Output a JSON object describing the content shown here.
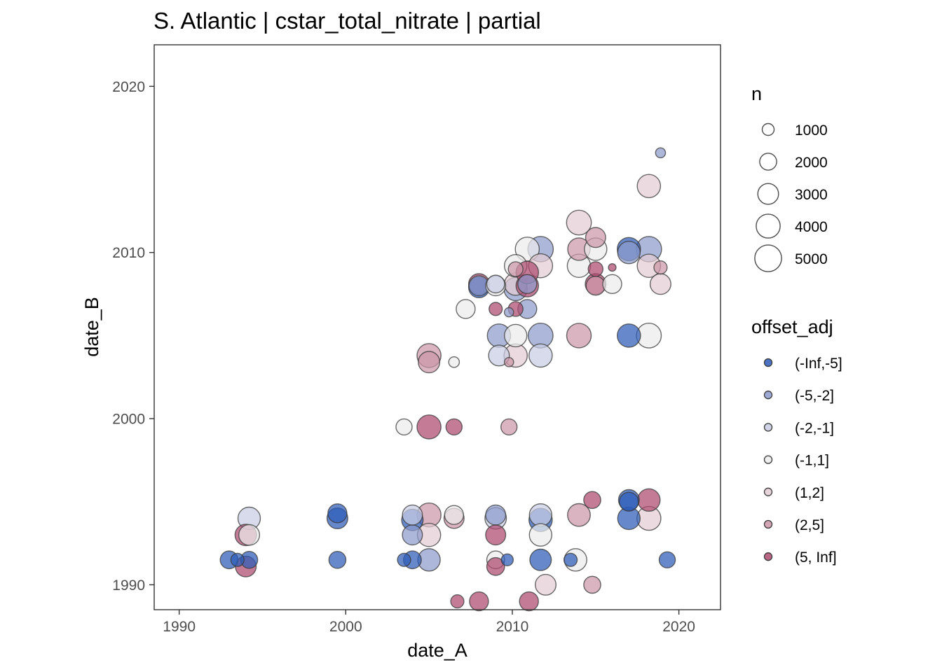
{
  "chart_data": {
    "type": "scatter",
    "title": "S. Atlantic | cstar_total_nitrate | partial",
    "xlabel": "date_A",
    "ylabel": "date_B",
    "xlim": [
      1988.5,
      2022.5
    ],
    "ylim": [
      1988.5,
      2022.5
    ],
    "x_ticks": [
      1990,
      2000,
      2010,
      2020
    ],
    "y_ticks": [
      1990,
      2000,
      2010,
      2020
    ],
    "x_tick_labels": [
      "1990",
      "2000",
      "2010",
      "2020"
    ],
    "y_tick_labels": [
      "1990",
      "2000",
      "2010",
      "2020"
    ],
    "grid": false,
    "legend_position": "right",
    "size_legend": {
      "title": "n",
      "entries": [
        {
          "label": "1000",
          "value": 1000
        },
        {
          "label": "2000",
          "value": 2000
        },
        {
          "label": "3000",
          "value": 3000
        },
        {
          "label": "4000",
          "value": 4000
        },
        {
          "label": "5000",
          "value": 5000
        }
      ]
    },
    "color_legend": {
      "title": "offset_adj",
      "entries": [
        {
          "label": "(-Inf,-5]",
          "color": "#2c5bb7"
        },
        {
          "label": "(-5,-2]",
          "color": "#8e9bcc"
        },
        {
          "label": "(-2,-1]",
          "color": "#c9cde3"
        },
        {
          "label": "(-1,1]",
          "color": "#ececec"
        },
        {
          "label": "(1,2]",
          "color": "#e3ccd3"
        },
        {
          "label": "(2,5]",
          "color": "#cc97a8"
        },
        {
          "label": "(5, Inf]",
          "color": "#ad4a6e"
        }
      ]
    },
    "points": [
      {
        "x": 1993.0,
        "y": 1991.5,
        "n": 2200,
        "group": "(-Inf,-5]"
      },
      {
        "x": 1993.5,
        "y": 1991.5,
        "n": 1200,
        "group": "(-Inf,-5]"
      },
      {
        "x": 1994.2,
        "y": 1991.5,
        "n": 2000,
        "group": "(-Inf,-5]"
      },
      {
        "x": 1994.0,
        "y": 1991.1,
        "n": 3000,
        "group": "(5, Inf]"
      },
      {
        "x": 1994.2,
        "y": 1993.0,
        "n": 3000,
        "group": "(-1,1]"
      },
      {
        "x": 1994.0,
        "y": 1993.0,
        "n": 3200,
        "group": "(5, Inf]"
      },
      {
        "x": 1994.2,
        "y": 1994.0,
        "n": 3500,
        "group": "(-2,-1]"
      },
      {
        "x": 1999.5,
        "y": 1994.3,
        "n": 2500,
        "group": "(-Inf,-5]"
      },
      {
        "x": 1999.5,
        "y": 1994.0,
        "n": 3000,
        "group": "(-Inf,-5]"
      },
      {
        "x": 1999.5,
        "y": 1991.5,
        "n": 2000,
        "group": "(-Inf,-5]"
      },
      {
        "x": 2003.5,
        "y": 1991.5,
        "n": 1200,
        "group": "(-Inf,-5]"
      },
      {
        "x": 2004.0,
        "y": 1991.5,
        "n": 2200,
        "group": "(-Inf,-5]"
      },
      {
        "x": 2005.0,
        "y": 1991.5,
        "n": 3500,
        "group": "(-5,-2]"
      },
      {
        "x": 2004.0,
        "y": 1993.0,
        "n": 2800,
        "group": "(-5,-2]"
      },
      {
        "x": 2004.0,
        "y": 1994.2,
        "n": 2800,
        "group": "(-2,-1]"
      },
      {
        "x": 2004.0,
        "y": 1993.9,
        "n": 3200,
        "group": "(-Inf,-5]"
      },
      {
        "x": 2005.0,
        "y": 1993.0,
        "n": 3800,
        "group": "(1,2]"
      },
      {
        "x": 2005.0,
        "y": 1994.2,
        "n": 4000,
        "group": "(2,5]"
      },
      {
        "x": 2006.5,
        "y": 1994.2,
        "n": 2500,
        "group": "(-1,1]"
      },
      {
        "x": 2006.5,
        "y": 1994.0,
        "n": 2800,
        "group": "(2,5]"
      },
      {
        "x": 2006.7,
        "y": 1989.0,
        "n": 1200,
        "group": "(5, Inf]"
      },
      {
        "x": 2008.0,
        "y": 1989.0,
        "n": 2500,
        "group": "(5, Inf]"
      },
      {
        "x": 2009.0,
        "y": 1994.2,
        "n": 2800,
        "group": "(-5,-2]"
      },
      {
        "x": 2009.0,
        "y": 1994.0,
        "n": 3200,
        "group": "(-2,-1]"
      },
      {
        "x": 2009.0,
        "y": 1993.0,
        "n": 2800,
        "group": "(5, Inf]"
      },
      {
        "x": 2009.0,
        "y": 1991.5,
        "n": 2200,
        "group": "(-1,1]"
      },
      {
        "x": 2009.0,
        "y": 1991.1,
        "n": 2200,
        "group": "(5, Inf]"
      },
      {
        "x": 2009.7,
        "y": 1991.5,
        "n": 1000,
        "group": "(-Inf,-5]"
      },
      {
        "x": 2011.0,
        "y": 1989.0,
        "n": 2500,
        "group": "(5, Inf]"
      },
      {
        "x": 2011.7,
        "y": 1994.2,
        "n": 3500,
        "group": "(-2,-1]"
      },
      {
        "x": 2011.7,
        "y": 1993.9,
        "n": 3800,
        "group": "(-Inf,-5]"
      },
      {
        "x": 2011.7,
        "y": 1993.0,
        "n": 3500,
        "group": "(-1,1]"
      },
      {
        "x": 2011.7,
        "y": 1991.5,
        "n": 3200,
        "group": "(-Inf,-5]"
      },
      {
        "x": 2012.0,
        "y": 1990.0,
        "n": 3000,
        "group": "(1,2]"
      },
      {
        "x": 2013.5,
        "y": 1991.5,
        "n": 1200,
        "group": "(-Inf,-5]"
      },
      {
        "x": 2013.8,
        "y": 1991.5,
        "n": 3500,
        "group": "(-1,1]"
      },
      {
        "x": 2014.0,
        "y": 1994.2,
        "n": 3600,
        "group": "(2,5]"
      },
      {
        "x": 2014.8,
        "y": 1995.1,
        "n": 2000,
        "group": "(5, Inf]"
      },
      {
        "x": 2014.8,
        "y": 1990.0,
        "n": 2000,
        "group": "(2,5]"
      },
      {
        "x": 2017.0,
        "y": 1995.1,
        "n": 3000,
        "group": "(-Inf,-5]"
      },
      {
        "x": 2017.0,
        "y": 1995.0,
        "n": 2500,
        "group": "(-Inf,-5]"
      },
      {
        "x": 2017.0,
        "y": 1994.0,
        "n": 3500,
        "group": "(-Inf,-5]"
      },
      {
        "x": 2018.2,
        "y": 1995.1,
        "n": 3500,
        "group": "(5, Inf]"
      },
      {
        "x": 2018.2,
        "y": 1994.0,
        "n": 4000,
        "group": "(1,2]"
      },
      {
        "x": 2019.3,
        "y": 1991.5,
        "n": 1800,
        "group": "(-Inf,-5]"
      },
      {
        "x": 2003.5,
        "y": 1999.5,
        "n": 1800,
        "group": "(-1,1]"
      },
      {
        "x": 2005.0,
        "y": 1999.5,
        "n": 4000,
        "group": "(5, Inf]"
      },
      {
        "x": 2006.5,
        "y": 1999.5,
        "n": 1800,
        "group": "(5, Inf]"
      },
      {
        "x": 2009.8,
        "y": 1999.5,
        "n": 1800,
        "group": "(2,5]"
      },
      {
        "x": 2005.0,
        "y": 2003.8,
        "n": 4000,
        "group": "(2,5]"
      },
      {
        "x": 2005.0,
        "y": 2003.4,
        "n": 3200,
        "group": "(2,5]"
      },
      {
        "x": 2006.5,
        "y": 2003.4,
        "n": 800,
        "group": "(-1,1]"
      },
      {
        "x": 2009.2,
        "y": 2003.8,
        "n": 3000,
        "group": "(-2,-1]"
      },
      {
        "x": 2009.2,
        "y": 2005.0,
        "n": 3800,
        "group": "(-5,-2]"
      },
      {
        "x": 2010.2,
        "y": 2005.0,
        "n": 3500,
        "group": "(-1,1]"
      },
      {
        "x": 2010.2,
        "y": 2003.8,
        "n": 3800,
        "group": "(1,2]"
      },
      {
        "x": 2009.8,
        "y": 2003.4,
        "n": 600,
        "group": "(2,5]"
      },
      {
        "x": 2011.7,
        "y": 2005.0,
        "n": 4300,
        "group": "(-5,-2]"
      },
      {
        "x": 2011.7,
        "y": 2003.8,
        "n": 3800,
        "group": "(-2,-1]"
      },
      {
        "x": 2014.0,
        "y": 2005.0,
        "n": 4200,
        "group": "(2,5]"
      },
      {
        "x": 2017.0,
        "y": 2005.0,
        "n": 3800,
        "group": "(-Inf,-5]"
      },
      {
        "x": 2018.2,
        "y": 2005.0,
        "n": 4300,
        "group": "(-1,1]"
      },
      {
        "x": 2007.2,
        "y": 2006.6,
        "n": 2500,
        "group": "(-1,1]"
      },
      {
        "x": 2009.0,
        "y": 2006.6,
        "n": 1200,
        "group": "(5, Inf]"
      },
      {
        "x": 2009.8,
        "y": 2006.4,
        "n": 600,
        "group": "(-5,-2]"
      },
      {
        "x": 2010.2,
        "y": 2006.6,
        "n": 1500,
        "group": "(5, Inf]"
      },
      {
        "x": 2010.9,
        "y": 2006.6,
        "n": 2500,
        "group": "(-5,-2]"
      },
      {
        "x": 2008.0,
        "y": 2008.1,
        "n": 3000,
        "group": "(5, Inf]"
      },
      {
        "x": 2008.0,
        "y": 2007.9,
        "n": 3000,
        "group": "(-Inf,-5]"
      },
      {
        "x": 2008.0,
        "y": 2008.0,
        "n": 2800,
        "group": "(-5,-2]"
      },
      {
        "x": 2009.0,
        "y": 2008.0,
        "n": 2800,
        "group": "(-1,1]"
      },
      {
        "x": 2009.0,
        "y": 2008.1,
        "n": 2200,
        "group": "(-2,-1]"
      },
      {
        "x": 2010.2,
        "y": 2007.8,
        "n": 3800,
        "group": "(-5,-2]"
      },
      {
        "x": 2010.2,
        "y": 2008.1,
        "n": 3500,
        "group": "(1,2]"
      },
      {
        "x": 2010.2,
        "y": 2009.2,
        "n": 3500,
        "group": "(-1,1]"
      },
      {
        "x": 2010.2,
        "y": 2009.0,
        "n": 1500,
        "group": "(2,5]"
      },
      {
        "x": 2010.9,
        "y": 2008.0,
        "n": 3500,
        "group": "(5, Inf]"
      },
      {
        "x": 2010.9,
        "y": 2008.8,
        "n": 3500,
        "group": "(5, Inf]"
      },
      {
        "x": 2010.9,
        "y": 2008.1,
        "n": 2500,
        "group": "(-5,-2]"
      },
      {
        "x": 2010.9,
        "y": 2010.2,
        "n": 4000,
        "group": "(-1,1]"
      },
      {
        "x": 2011.7,
        "y": 2010.2,
        "n": 4500,
        "group": "(-5,-2]"
      },
      {
        "x": 2011.7,
        "y": 2009.2,
        "n": 4000,
        "group": "(1,2]"
      },
      {
        "x": 2014.0,
        "y": 2011.8,
        "n": 4300,
        "group": "(1,2]"
      },
      {
        "x": 2014.0,
        "y": 2010.2,
        "n": 3500,
        "group": "(2,5]"
      },
      {
        "x": 2014.0,
        "y": 2009.2,
        "n": 3800,
        "group": "(-1,1]"
      },
      {
        "x": 2015.0,
        "y": 2010.9,
        "n": 2800,
        "group": "(2,5]"
      },
      {
        "x": 2015.0,
        "y": 2010.2,
        "n": 3500,
        "group": "(-1,1]"
      },
      {
        "x": 2015.0,
        "y": 2009.0,
        "n": 1500,
        "group": "(5, Inf]"
      },
      {
        "x": 2015.0,
        "y": 2008.1,
        "n": 3000,
        "group": "(5, Inf]"
      },
      {
        "x": 2015.0,
        "y": 2008.0,
        "n": 2500,
        "group": "(2,5]"
      },
      {
        "x": 2016.0,
        "y": 2009.1,
        "n": 400,
        "group": "(5, Inf]"
      },
      {
        "x": 2016.0,
        "y": 2008.1,
        "n": 2500,
        "group": "(-1,1]"
      },
      {
        "x": 2017.0,
        "y": 2010.2,
        "n": 3800,
        "group": "(-Inf,-5]"
      },
      {
        "x": 2017.0,
        "y": 2010.0,
        "n": 3500,
        "group": "(-5,-2]"
      },
      {
        "x": 2018.2,
        "y": 2010.2,
        "n": 4500,
        "group": "(-5,-2]"
      },
      {
        "x": 2018.2,
        "y": 2009.2,
        "n": 3800,
        "group": "(1,2]"
      },
      {
        "x": 2018.9,
        "y": 2009.1,
        "n": 1200,
        "group": "(2,5]"
      },
      {
        "x": 2018.9,
        "y": 2008.1,
        "n": 3000,
        "group": "(1,2]"
      },
      {
        "x": 2018.2,
        "y": 2014.0,
        "n": 3800,
        "group": "(1,2]"
      },
      {
        "x": 2018.9,
        "y": 2016.0,
        "n": 700,
        "group": "(-5,-2]"
      }
    ]
  }
}
